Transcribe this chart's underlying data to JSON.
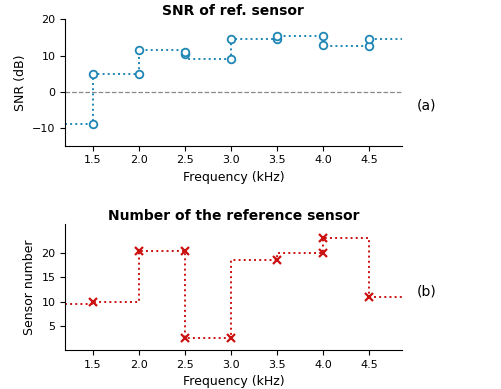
{
  "snr_title": "SNR of ref. sensor",
  "sensor_title": "Number of the reference sensor",
  "xlabel": "Frequency (kHz)",
  "snr_ylabel": "SNR (dB)",
  "sensor_ylabel": "Sensor number",
  "snr_ylim": [
    -15,
    20
  ],
  "snr_yticks": [
    -10,
    0,
    10,
    20
  ],
  "sensor_ylim": [
    0,
    26
  ],
  "sensor_yticks": [
    5,
    10,
    15,
    20
  ],
  "xlim": [
    1.2,
    4.85
  ],
  "xticks": [
    1.5,
    2.0,
    2.5,
    3.0,
    3.5,
    4.0,
    4.5
  ],
  "blue_color": "#1f86b5",
  "red_color": "#cc1111",
  "dash_color": "#888888",
  "snr_circles_x": [
    1.5,
    1.5,
    2.0,
    2.0,
    2.5,
    2.5,
    3.0,
    3.0,
    3.5,
    3.5,
    4.0,
    4.0,
    4.5,
    4.5
  ],
  "snr_circles_y": [
    -9.0,
    5.0,
    5.0,
    11.5,
    10.5,
    11.0,
    9.0,
    14.5,
    14.5,
    15.5,
    13.0,
    15.5,
    12.5,
    14.5
  ],
  "snr_line_x": [
    1.2,
    1.5,
    1.5,
    2.0,
    2.0,
    2.5,
    2.5,
    3.0,
    3.0,
    3.5,
    3.5,
    4.0,
    4.0,
    4.5,
    4.5,
    4.85
  ],
  "snr_line_y": [
    -9.0,
    -9.0,
    5.0,
    5.0,
    11.5,
    11.5,
    9.0,
    9.0,
    14.5,
    14.5,
    15.5,
    15.5,
    12.5,
    12.5,
    14.5,
    14.5
  ],
  "sensor_line_x": [
    1.2,
    1.5,
    1.5,
    2.0,
    2.0,
    2.5,
    2.5,
    3.0,
    3.0,
    3.5,
    3.5,
    4.0,
    4.0,
    4.5,
    4.5,
    4.85
  ],
  "sensor_line_y": [
    9.5,
    9.5,
    10.0,
    10.0,
    20.5,
    20.5,
    2.5,
    2.5,
    18.5,
    18.5,
    20.0,
    20.0,
    23.0,
    23.0,
    11.0,
    11.0
  ],
  "sensor_markers_x": [
    1.5,
    2.0,
    2.5,
    2.5,
    3.0,
    3.5,
    4.0,
    4.0,
    4.5
  ],
  "sensor_markers_y": [
    10.0,
    20.5,
    20.5,
    2.5,
    2.5,
    18.5,
    20.0,
    23.0,
    11.0
  ],
  "label_a": "(a)",
  "label_b": "(b)"
}
